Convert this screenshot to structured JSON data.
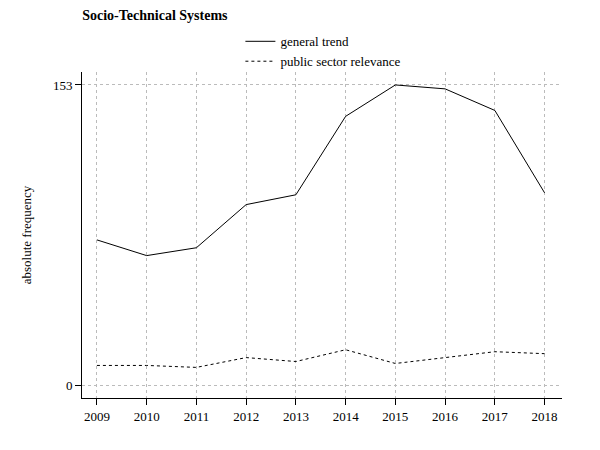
{
  "chart_data": {
    "type": "line",
    "title": "Socio-Technical Systems",
    "y_label": "absolute frequency",
    "x": [
      2009,
      2010,
      2011,
      2012,
      2013,
      2014,
      2015,
      2016,
      2017,
      2018
    ],
    "series": [
      {
        "name": "general trend",
        "color": "#000000",
        "line_style": "solid",
        "values": [
          74,
          66,
          70,
          92,
          97,
          137,
          153,
          151,
          140,
          98
        ]
      },
      {
        "name": "public sector relevance",
        "color": "#000000",
        "line_style": "dotted",
        "values": [
          10,
          10,
          9,
          14,
          12,
          18,
          11,
          14,
          17,
          16
        ]
      }
    ],
    "xlim": [
      2008.7,
      2018.35
    ],
    "xticks": [
      2009,
      2010,
      2011,
      2012,
      2013,
      2014,
      2015,
      2016,
      2017,
      2018
    ],
    "ylim": [
      -6.6,
      159.6
    ],
    "yticks": [
      0,
      153
    ],
    "grid": true,
    "legend": "top"
  }
}
